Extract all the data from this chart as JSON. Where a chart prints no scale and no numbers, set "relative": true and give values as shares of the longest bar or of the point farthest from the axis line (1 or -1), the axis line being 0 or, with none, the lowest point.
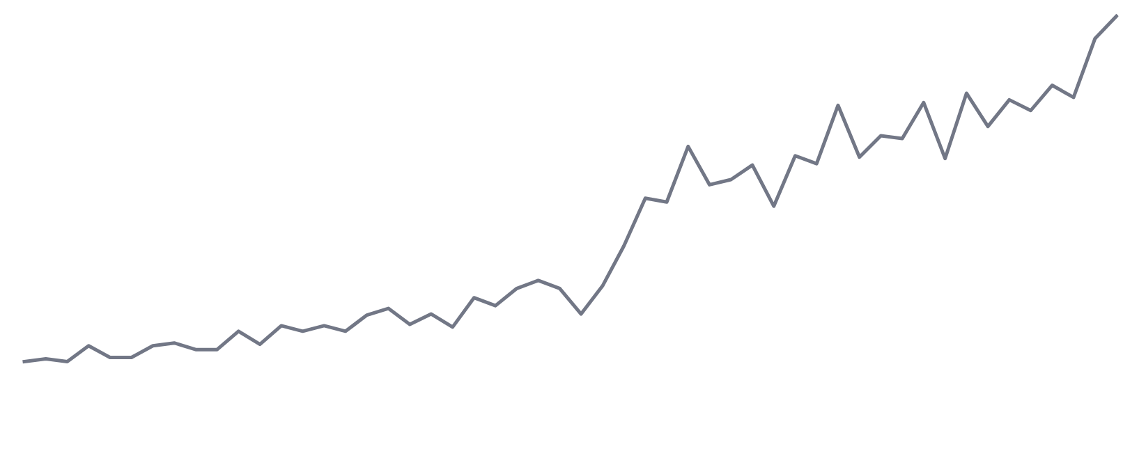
{
  "chart_data": {
    "type": "line",
    "relative": true,
    "categories": [
      null,
      null,
      null,
      null,
      null,
      null,
      null,
      null,
      null,
      null,
      null,
      null,
      null,
      null,
      null,
      null,
      null,
      null,
      null,
      null,
      null,
      null,
      null,
      null,
      null,
      null,
      null,
      null,
      null,
      null,
      null,
      null,
      null,
      null,
      null,
      null,
      null,
      null,
      null,
      null,
      null,
      null,
      null,
      null,
      null,
      null,
      null,
      null,
      null,
      null,
      null,
      null
    ],
    "series": [
      {
        "color": "#727786",
        "values": [
          0,
          0.008,
          0,
          0.046,
          0.012,
          0.012,
          0.046,
          0.054,
          0.035,
          0.035,
          0.088,
          0.05,
          0.104,
          0.088,
          0.104,
          0.088,
          0.135,
          0.154,
          0.108,
          0.138,
          0.1,
          0.185,
          0.162,
          0.212,
          0.235,
          0.212,
          0.138,
          0.219,
          0.335,
          0.473,
          0.462,
          0.623,
          0.512,
          0.527,
          0.569,
          0.45,
          0.596,
          0.573,
          0.742,
          0.592,
          0.654,
          0.646,
          0.75,
          0.588,
          0.777,
          0.681,
          0.758,
          0.727,
          0.8,
          0.765,
          0.935,
          1
        ]
      }
    ],
    "marker": "none",
    "line_style": "solid",
    "tick_labels": false
  }
}
